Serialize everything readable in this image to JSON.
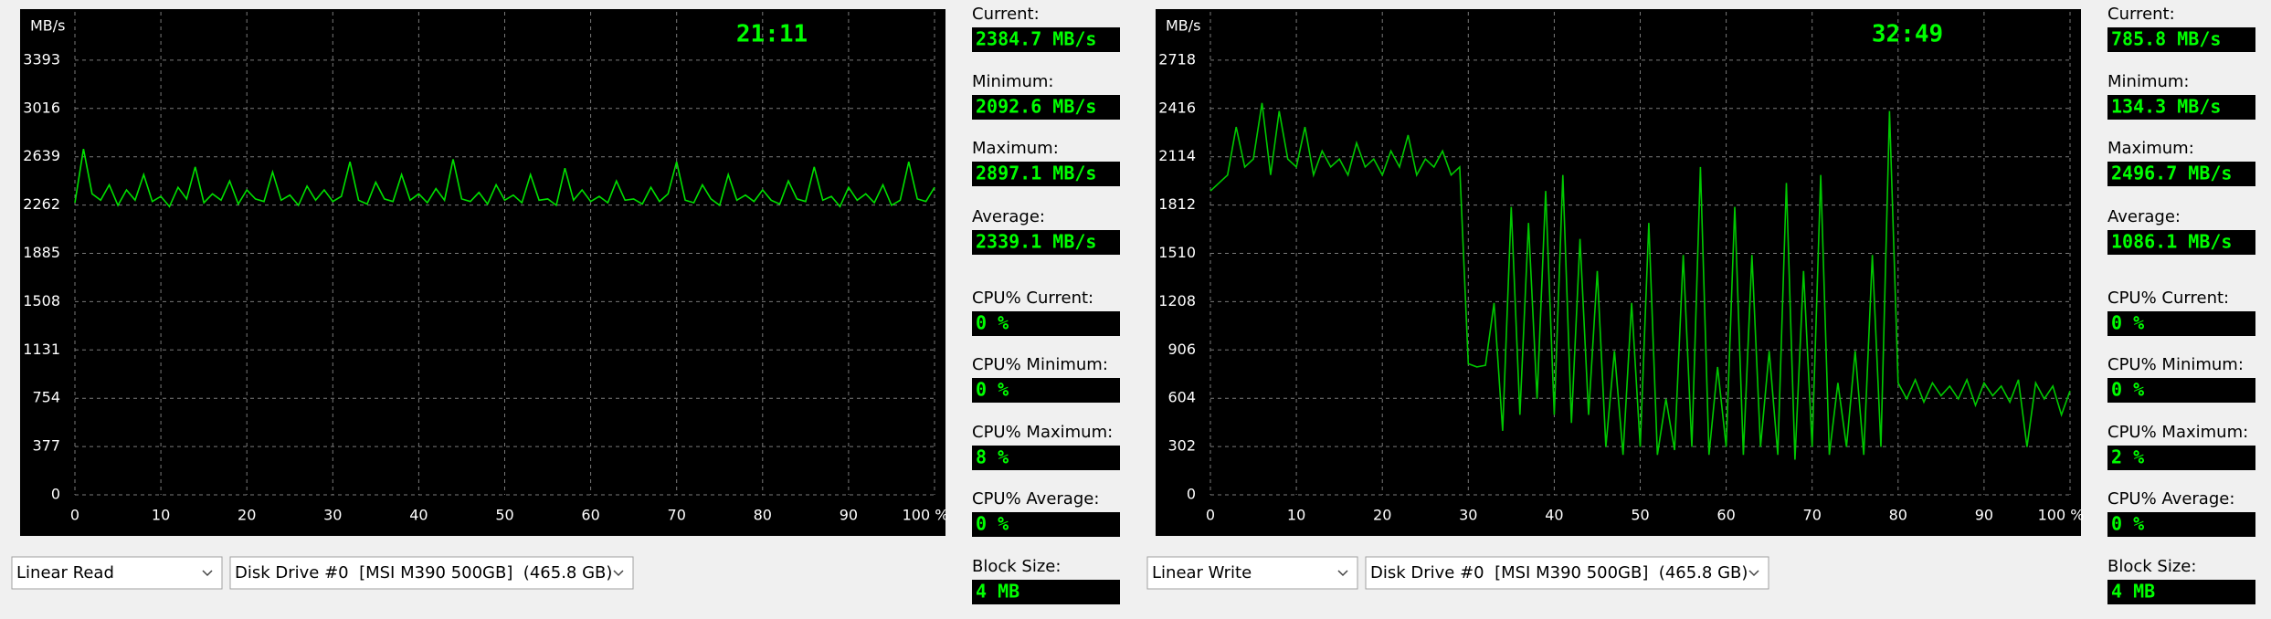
{
  "chart_data": [
    {
      "type": "line",
      "y_unit": "MB/s",
      "time": "21:11",
      "xlim": [
        0,
        100
      ],
      "xticks": [
        0,
        10,
        20,
        30,
        40,
        50,
        60,
        70,
        80,
        90,
        {
          "value": 100,
          "label": "100 %"
        }
      ],
      "ylim": [
        0,
        3770
      ],
      "yticks": [
        0,
        377,
        754,
        1131,
        1508,
        1885,
        2262,
        2639,
        3016,
        3393
      ],
      "grid": true,
      "series": [
        {
          "name": "Linear Read",
          "color": "#00e000",
          "x": [
            0,
            1,
            2,
            3,
            4,
            5,
            6,
            7,
            8,
            9,
            10,
            11,
            12,
            13,
            14,
            15,
            16,
            17,
            18,
            19,
            20,
            21,
            22,
            23,
            24,
            25,
            26,
            27,
            28,
            29,
            30,
            31,
            32,
            33,
            34,
            35,
            36,
            37,
            38,
            39,
            40,
            41,
            42,
            43,
            44,
            45,
            46,
            47,
            48,
            49,
            50,
            51,
            52,
            53,
            54,
            55,
            56,
            57,
            58,
            59,
            60,
            61,
            62,
            63,
            64,
            65,
            66,
            67,
            68,
            69,
            70,
            71,
            72,
            73,
            74,
            75,
            76,
            77,
            78,
            79,
            80,
            81,
            82,
            83,
            84,
            85,
            86,
            87,
            88,
            89,
            90,
            91,
            92,
            93,
            94,
            95,
            96,
            97,
            98,
            99,
            100
          ],
          "values": [
            2280,
            2700,
            2350,
            2300,
            2420,
            2260,
            2380,
            2300,
            2500,
            2290,
            2330,
            2250,
            2400,
            2310,
            2560,
            2280,
            2350,
            2300,
            2450,
            2270,
            2380,
            2310,
            2290,
            2520,
            2300,
            2340,
            2260,
            2410,
            2300,
            2380,
            2290,
            2330,
            2600,
            2300,
            2270,
            2440,
            2310,
            2290,
            2500,
            2300,
            2350,
            2280,
            2390,
            2300,
            2620,
            2310,
            2290,
            2360,
            2270,
            2420,
            2300,
            2340,
            2280,
            2500,
            2300,
            2310,
            2260,
            2550,
            2300,
            2380,
            2290,
            2330,
            2280,
            2450,
            2300,
            2310,
            2270,
            2400,
            2290,
            2350,
            2600,
            2300,
            2280,
            2420,
            2310,
            2260,
            2500,
            2300,
            2340,
            2290,
            2380,
            2300,
            2270,
            2450,
            2310,
            2290,
            2560,
            2300,
            2330,
            2250,
            2400,
            2300,
            2350,
            2280,
            2420,
            2260,
            2300,
            2600,
            2310,
            2290,
            2400
          ]
        }
      ],
      "stats": [
        {
          "label": "Current:",
          "value": "2384.7 MB/s"
        },
        {
          "label": "Minimum:",
          "value": "2092.6 MB/s"
        },
        {
          "label": "Maximum:",
          "value": "2897.1 MB/s"
        },
        {
          "label": "Average:",
          "value": "2339.1 MB/s"
        },
        {
          "label": "CPU% Current:",
          "value": "0 %"
        },
        {
          "label": "CPU% Minimum:",
          "value": "0 %"
        },
        {
          "label": "CPU% Maximum:",
          "value": "8 %"
        },
        {
          "label": "CPU% Average:",
          "value": "0 %"
        },
        {
          "label": "Block Size:",
          "value": "4 MB"
        }
      ],
      "test_mode": "Linear Read",
      "drive": "Disk Drive #0  [MSI M390 500GB]  (465.8 GB)"
    },
    {
      "type": "line",
      "y_unit": "MB/s",
      "time": "32:49",
      "xlim": [
        0,
        100
      ],
      "xticks": [
        0,
        10,
        20,
        30,
        40,
        50,
        60,
        70,
        80,
        90,
        {
          "value": 100,
          "label": "100 %"
        }
      ],
      "ylim": [
        0,
        3020
      ],
      "yticks": [
        0,
        302,
        604,
        906,
        1208,
        1510,
        1812,
        2114,
        2416,
        2718
      ],
      "grid": true,
      "series": [
        {
          "name": "Linear Write",
          "color": "#00c800",
          "x": [
            0,
            1,
            2,
            3,
            4,
            5,
            6,
            7,
            8,
            9,
            10,
            11,
            12,
            13,
            14,
            15,
            16,
            17,
            18,
            19,
            20,
            21,
            22,
            23,
            24,
            25,
            26,
            27,
            28,
            29,
            30,
            31,
            32,
            33,
            34,
            35,
            36,
            37,
            38,
            39,
            40,
            41,
            42,
            43,
            44,
            45,
            46,
            47,
            48,
            49,
            50,
            51,
            52,
            53,
            54,
            55,
            56,
            57,
            58,
            59,
            60,
            61,
            62,
            63,
            64,
            65,
            66,
            67,
            68,
            69,
            70,
            71,
            72,
            73,
            74,
            75,
            76,
            77,
            78,
            79,
            80,
            81,
            82,
            83,
            84,
            85,
            86,
            87,
            88,
            89,
            90,
            91,
            92,
            93,
            94,
            95,
            96,
            97,
            98,
            99,
            100
          ],
          "values": [
            1900,
            1950,
            2000,
            2300,
            2050,
            2100,
            2450,
            2000,
            2400,
            2100,
            2050,
            2300,
            2000,
            2150,
            2050,
            2100,
            2000,
            2200,
            2050,
            2100,
            2000,
            2150,
            2050,
            2250,
            2000,
            2100,
            2050,
            2150,
            2000,
            2050,
            820,
            800,
            810,
            1200,
            400,
            1800,
            500,
            1700,
            600,
            1900,
            500,
            2000,
            450,
            1600,
            500,
            1400,
            300,
            900,
            250,
            1200,
            300,
            1700,
            250,
            600,
            280,
            1500,
            300,
            2050,
            250,
            800,
            300,
            1800,
            250,
            1500,
            300,
            900,
            250,
            1950,
            220,
            1400,
            300,
            2000,
            250,
            700,
            300,
            900,
            250,
            1500,
            300,
            2400,
            700,
            600,
            720,
            580,
            700,
            620,
            680,
            600,
            720,
            560,
            700,
            620,
            680,
            580,
            720,
            300,
            700,
            600,
            680,
            500,
            650
          ]
        }
      ],
      "stats": [
        {
          "label": "Current:",
          "value": "785.8 MB/s"
        },
        {
          "label": "Minimum:",
          "value": "134.3 MB/s"
        },
        {
          "label": "Maximum:",
          "value": "2496.7 MB/s"
        },
        {
          "label": "Average:",
          "value": "1086.1 MB/s"
        },
        {
          "label": "CPU% Current:",
          "value": "0 %"
        },
        {
          "label": "CPU% Minimum:",
          "value": "0 %"
        },
        {
          "label": "CPU% Maximum:",
          "value": "2 %"
        },
        {
          "label": "CPU% Average:",
          "value": "0 %"
        },
        {
          "label": "Block Size:",
          "value": "4 MB"
        }
      ],
      "test_mode": "Linear Write",
      "drive": "Disk Drive #0  [MSI M390 500GB]  (465.8 GB)"
    }
  ]
}
